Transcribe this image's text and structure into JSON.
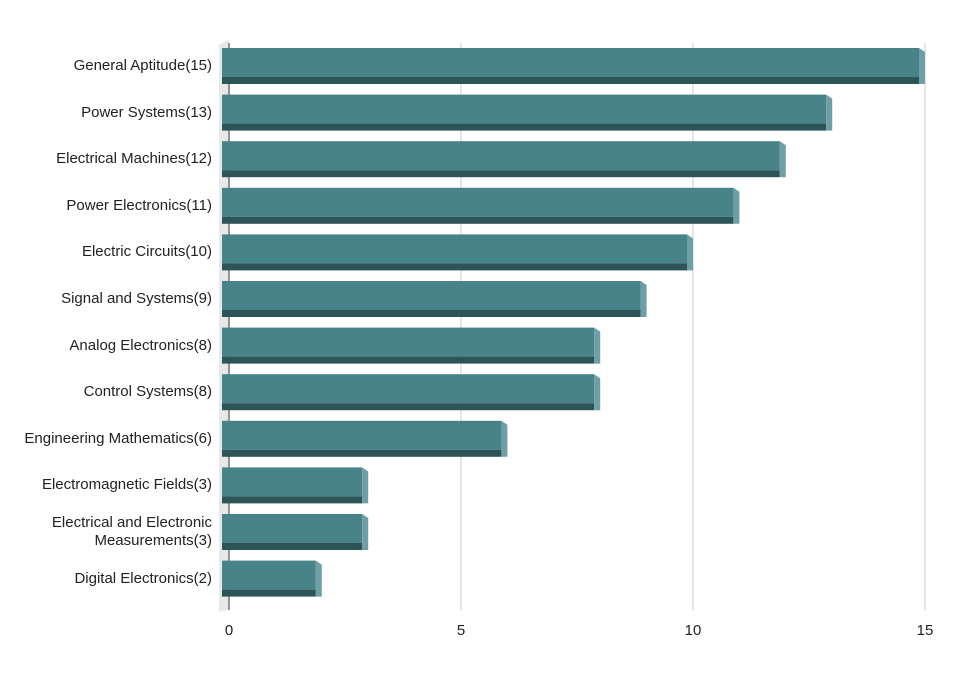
{
  "chart_data": {
    "type": "hbar",
    "categories": [
      "General Aptitude(15)",
      "Power Systems(13)",
      "Electrical Machines(12)",
      "Power Electronics(11)",
      "Electric Circuits(10)",
      "Signal and Systems(9)",
      "Analog Electronics(8)",
      "Control Systems(8)",
      "Engineering Mathematics(6)",
      "Electromagnetic Fields(3)",
      "Electrical and Electronic Measurements(3)",
      "Digital Electronics(2)"
    ],
    "values": [
      15,
      13,
      12,
      11,
      10,
      9,
      8,
      8,
      6,
      3,
      3,
      2
    ],
    "color": "#48838a",
    "xlim": [
      0,
      15
    ],
    "xticks": [
      0,
      5,
      10,
      15
    ],
    "grid": true
  }
}
